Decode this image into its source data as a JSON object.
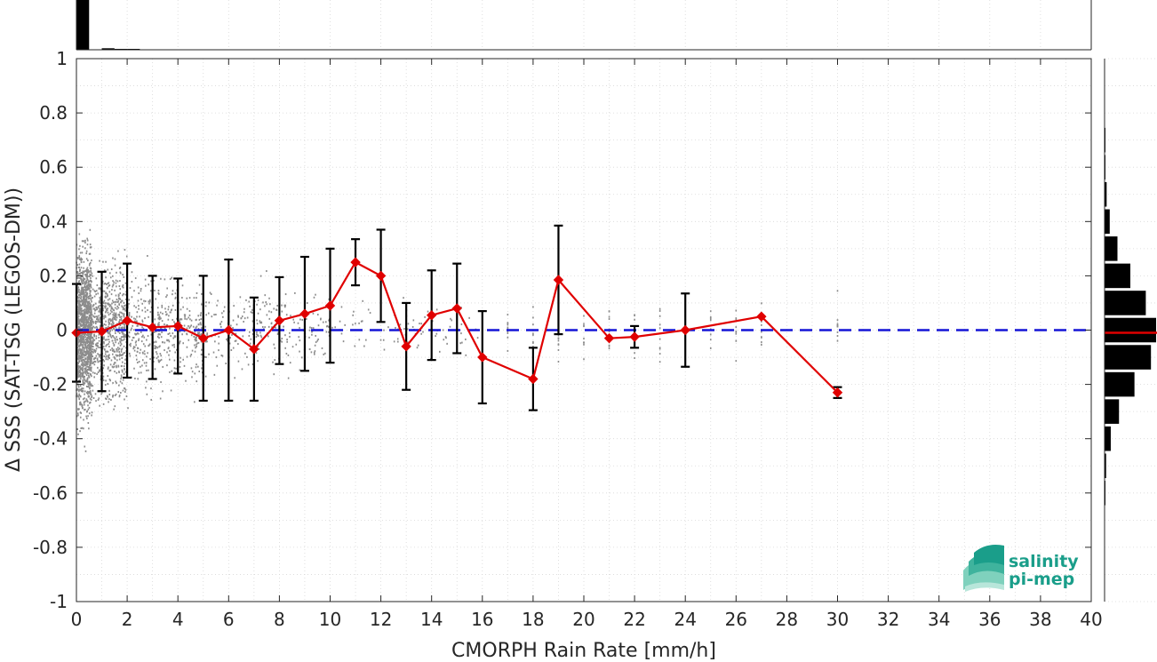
{
  "chart_data": {
    "type": "scatter",
    "xlabel": "CMORPH Rain Rate [mm/h]",
    "ylabel": "Δ SSS (SAT-TSG (LEGOS-DM))",
    "xlim": [
      0,
      40
    ],
    "ylim": [
      -1,
      1
    ],
    "x_ticks": [
      "0",
      "2",
      "4",
      "6",
      "8",
      "10",
      "12",
      "14",
      "16",
      "18",
      "20",
      "22",
      "24",
      "26",
      "28",
      "30",
      "32",
      "34",
      "36",
      "38",
      "40"
    ],
    "y_ticks": [
      "-1",
      "-0.8",
      "-0.6",
      "-0.4",
      "-0.2",
      "0",
      "0.2",
      "0.4",
      "0.6",
      "0.8",
      "1"
    ],
    "grid": true,
    "series": [
      {
        "kind": "mean-with-errorbars",
        "color": "#e00000",
        "points": [
          {
            "x": 0,
            "y": -0.01,
            "err": 0.18
          },
          {
            "x": 1,
            "y": -0.005,
            "err": 0.22
          },
          {
            "x": 2,
            "y": 0.035,
            "err": 0.21
          },
          {
            "x": 3,
            "y": 0.01,
            "err": 0.19
          },
          {
            "x": 4,
            "y": 0.015,
            "err": 0.175
          },
          {
            "x": 5,
            "y": -0.03,
            "err": 0.23
          },
          {
            "x": 6,
            "y": 0.0,
            "err": 0.26
          },
          {
            "x": 7,
            "y": -0.07,
            "err": 0.19
          },
          {
            "x": 8,
            "y": 0.035,
            "err": 0.16
          },
          {
            "x": 9,
            "y": 0.06,
            "err": 0.21
          },
          {
            "x": 10,
            "y": 0.09,
            "err": 0.21
          },
          {
            "x": 11,
            "y": 0.25,
            "err": 0.085
          },
          {
            "x": 12,
            "y": 0.2,
            "err": 0.17
          },
          {
            "x": 13,
            "y": -0.06,
            "err": 0.16
          },
          {
            "x": 14,
            "y": 0.055,
            "err": 0.165
          },
          {
            "x": 15,
            "y": 0.08,
            "err": 0.165
          },
          {
            "x": 16,
            "y": -0.1,
            "err": 0.17
          },
          {
            "x": 18,
            "y": -0.18,
            "err": 0.115
          },
          {
            "x": 19,
            "y": 0.185,
            "err": 0.2
          },
          {
            "x": 21,
            "y": -0.03,
            "err": 0.0
          },
          {
            "x": 22,
            "y": -0.025,
            "err": 0.04
          },
          {
            "x": 24,
            "y": 0.0,
            "err": 0.135
          },
          {
            "x": 27,
            "y": 0.05,
            "err": 0.0
          },
          {
            "x": 30,
            "y": -0.23,
            "err": 0.02
          }
        ]
      },
      {
        "kind": "reference-line",
        "y": 0,
        "color": "#1515d6",
        "style": "dashed"
      }
    ],
    "scatter_color": "#8c8c8c",
    "top_histogram": {
      "bin_edges": [
        0,
        0.5,
        1,
        1.5,
        2,
        2.5
      ],
      "relative_counts": [
        1.0,
        0.0,
        0.03,
        0.015,
        0.01
      ]
    },
    "right_histogram": {
      "bin_centers": [
        0.7,
        0.6,
        0.5,
        0.4,
        0.3,
        0.2,
        0.1,
        0.0,
        -0.1,
        -0.2,
        -0.3,
        -0.4,
        -0.5,
        -0.6
      ],
      "relative_counts": [
        0.01,
        0.015,
        0.04,
        0.1,
        0.25,
        0.5,
        0.8,
        1.0,
        0.9,
        0.58,
        0.28,
        0.12,
        0.03,
        0.01
      ],
      "median_line_color": "#e00000",
      "median_y": -0.01
    }
  },
  "logo": {
    "line1": "salinity",
    "line2": "pi-mep",
    "color": "#1a9e8a"
  }
}
